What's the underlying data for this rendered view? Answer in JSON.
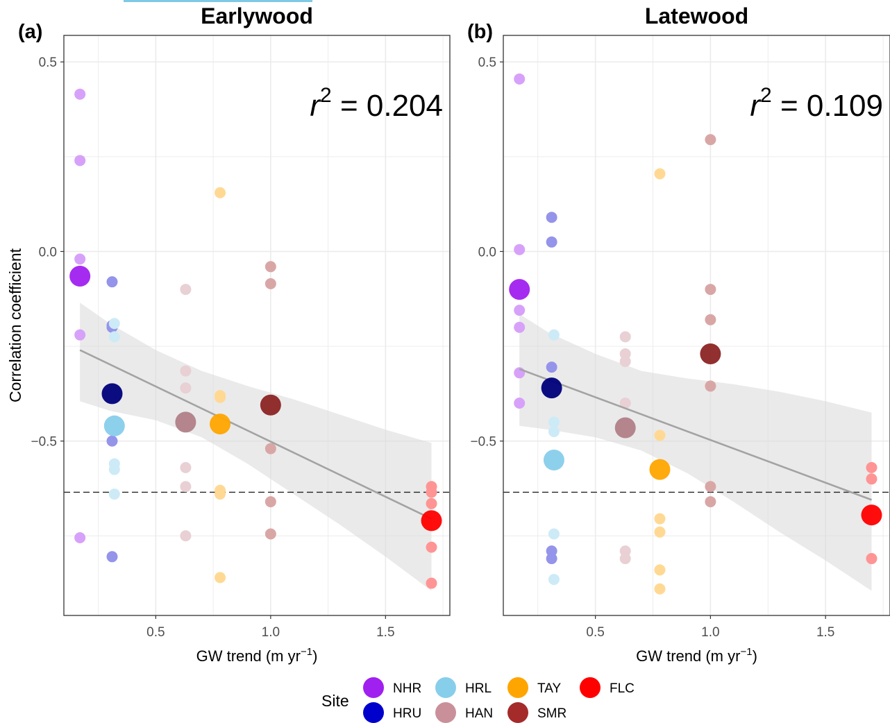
{
  "chart_data": [
    {
      "type": "scatter",
      "panel_label": "(a)",
      "title": "Earlywood",
      "xlabel": "GW trend (m yr",
      "xlabel_exp": "−1",
      "xlabel_close": ")",
      "ylabel": "Correlation coefficient",
      "xlim": [
        0.1,
        1.78
      ],
      "ylim": [
        -0.96,
        0.57
      ],
      "xticks": [
        0.5,
        1.0,
        1.5
      ],
      "xtick_labels": [
        "0.5",
        "1.0",
        "1.5"
      ],
      "yticks": [
        -0.5,
        0.0,
        0.5
      ],
      "ytick_labels": [
        "−0.5",
        "0.0",
        "0.5"
      ],
      "grid": true,
      "annotation": {
        "prefix": "r",
        "exp": "2",
        "text": " = 0.204"
      },
      "threshold": -0.635,
      "fit_line": {
        "x": [
          0.17,
          1.7
        ],
        "y": [
          -0.26,
          -0.705
        ]
      },
      "confidence_band": {
        "x": [
          0.17,
          0.3,
          0.5,
          0.7,
          0.9,
          1.1,
          1.3,
          1.5,
          1.7
        ],
        "upper": [
          -0.135,
          -0.19,
          -0.26,
          -0.315,
          -0.355,
          -0.39,
          -0.43,
          -0.47,
          -0.505
        ],
        "lower": [
          -0.395,
          -0.42,
          -0.445,
          -0.49,
          -0.56,
          -0.64,
          -0.72,
          -0.805,
          -0.895
        ]
      },
      "series": [
        {
          "name": "NHR",
          "color": "#a020f0",
          "x": 0.17,
          "mean": -0.065,
          "points": [
            0.415,
            0.24,
            -0.02,
            -0.22,
            -0.755
          ]
        },
        {
          "name": "HRU",
          "color": "#0000cd",
          "x": 0.31,
          "mean": -0.375,
          "points": [
            -0.08,
            -0.195,
            -0.2,
            -0.5,
            -0.805
          ]
        },
        {
          "name": "HRL",
          "color": "#87ceeb",
          "x": 0.32,
          "mean": -0.46,
          "points": [
            -0.19,
            -0.225,
            -0.56,
            -0.575,
            -0.64
          ]
        },
        {
          "name": "HAN",
          "color": "#c9909a",
          "x": 0.63,
          "mean": -0.45,
          "points": [
            -0.1,
            -0.315,
            -0.36,
            -0.57,
            -0.62,
            -0.75
          ]
        },
        {
          "name": "TAY",
          "color": "#ffa500",
          "x": 0.78,
          "mean": -0.455,
          "points": [
            0.155,
            -0.38,
            -0.385,
            -0.63,
            -0.64,
            -0.86
          ]
        },
        {
          "name": "SMR",
          "color": "#a52a2a",
          "x": 1.0,
          "mean": -0.405,
          "points": [
            -0.04,
            -0.085,
            -0.52,
            -0.66,
            -0.745
          ]
        },
        {
          "name": "FLC",
          "color": "#ff0000",
          "x": 1.7,
          "mean": -0.71,
          "points": [
            -0.62,
            -0.635,
            -0.665,
            -0.78,
            -0.875
          ]
        }
      ]
    },
    {
      "type": "scatter",
      "panel_label": "(b)",
      "title": "Latewood",
      "xlabel": "GW trend (m yr",
      "xlabel_exp": "−1",
      "xlabel_close": ")",
      "ylabel": "",
      "xlim": [
        0.1,
        1.78
      ],
      "ylim": [
        -0.96,
        0.57
      ],
      "xticks": [
        0.5,
        1.0,
        1.5
      ],
      "xtick_labels": [
        "0.5",
        "1.0",
        "1.5"
      ],
      "yticks": [
        -0.5,
        0.0,
        0.5
      ],
      "ytick_labels": [
        "−0.5",
        "0.0",
        "0.5"
      ],
      "grid": true,
      "annotation": {
        "prefix": "r",
        "exp": "2",
        "text": " = 0.109"
      },
      "threshold": -0.635,
      "fit_line": {
        "x": [
          0.17,
          1.7
        ],
        "y": [
          -0.31,
          -0.655
        ]
      },
      "confidence_band": {
        "x": [
          0.17,
          0.3,
          0.5,
          0.7,
          0.9,
          1.1,
          1.3,
          1.5,
          1.7
        ],
        "upper": [
          -0.165,
          -0.215,
          -0.27,
          -0.315,
          -0.335,
          -0.35,
          -0.37,
          -0.395,
          -0.425
        ],
        "lower": [
          -0.46,
          -0.47,
          -0.49,
          -0.525,
          -0.585,
          -0.66,
          -0.74,
          -0.815,
          -0.895
        ]
      },
      "series": [
        {
          "name": "NHR",
          "color": "#a020f0",
          "x": 0.17,
          "mean": -0.1,
          "points": [
            0.455,
            0.005,
            -0.155,
            -0.2,
            -0.32,
            -0.4
          ]
        },
        {
          "name": "HRU",
          "color": "#0000cd",
          "x": 0.31,
          "mean": -0.36,
          "points": [
            0.09,
            0.025,
            -0.305,
            -0.79,
            -0.81
          ]
        },
        {
          "name": "HRL",
          "color": "#87ceeb",
          "x": 0.32,
          "mean": -0.55,
          "points": [
            -0.22,
            -0.45,
            -0.475,
            -0.745,
            -0.865
          ]
        },
        {
          "name": "HAN",
          "color": "#c9909a",
          "x": 0.63,
          "mean": -0.465,
          "points": [
            -0.225,
            -0.27,
            -0.29,
            -0.4,
            -0.79,
            -0.81
          ]
        },
        {
          "name": "TAY",
          "color": "#ffa500",
          "x": 0.78,
          "mean": -0.575,
          "points": [
            0.205,
            -0.485,
            -0.705,
            -0.74,
            -0.84,
            -0.89
          ]
        },
        {
          "name": "SMR",
          "color": "#a52a2a",
          "x": 1.0,
          "mean": -0.27,
          "points": [
            0.295,
            -0.1,
            -0.18,
            -0.355,
            -0.62,
            -0.66
          ]
        },
        {
          "name": "FLC",
          "color": "#ff0000",
          "x": 1.7,
          "mean": -0.695,
          "points": [
            -0.57,
            -0.6,
            -0.81
          ]
        }
      ]
    }
  ],
  "legend": {
    "title": "Site",
    "position": "bottom",
    "items": [
      {
        "name": "NHR",
        "color": "#a020f0"
      },
      {
        "name": "HRU",
        "color": "#0000cd"
      },
      {
        "name": "HRL",
        "color": "#87ceeb"
      },
      {
        "name": "HAN",
        "color": "#c9909a"
      },
      {
        "name": "TAY",
        "color": "#ffa500"
      },
      {
        "name": "SMR",
        "color": "#a52a2a"
      },
      {
        "name": "FLC",
        "color": "#ff0000"
      }
    ]
  }
}
